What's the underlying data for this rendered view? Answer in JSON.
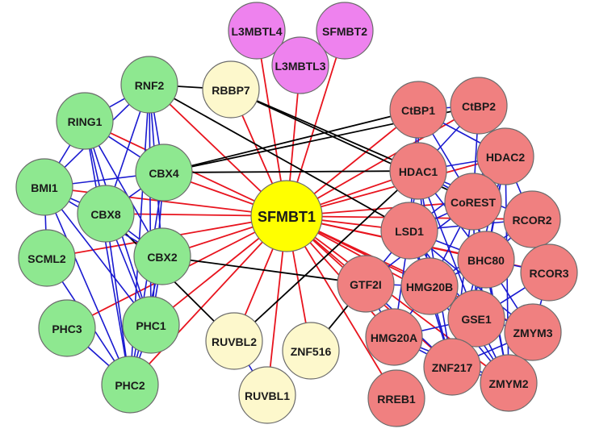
{
  "diagram": {
    "center": "SFMBT1",
    "edge_colors": {
      "red": "#e8141e",
      "blue": "#1a1ad0",
      "black": "#000000"
    },
    "group_colors": {
      "center": "#ffff00",
      "green": "#8ee890",
      "pink": "#f08080",
      "yellow": "#fdf8cc",
      "magenta": "#ee82ee"
    },
    "nodes": [
      {
        "id": "SFMBT1",
        "label": "SFMBT1",
        "group": "center"
      },
      {
        "id": "L3MBTL4",
        "label": "L3MBTL4",
        "group": "magenta"
      },
      {
        "id": "SFMBT2",
        "label": "SFMBT2",
        "group": "magenta"
      },
      {
        "id": "L3MBTL3",
        "label": "L3MBTL3",
        "group": "magenta"
      },
      {
        "id": "RBBP7",
        "label": "RBBP7",
        "group": "yellow"
      },
      {
        "id": "RUVBL2",
        "label": "RUVBL2",
        "group": "yellow"
      },
      {
        "id": "ZNF516",
        "label": "ZNF516",
        "group": "yellow"
      },
      {
        "id": "RUVBL1",
        "label": "RUVBL1",
        "group": "yellow"
      },
      {
        "id": "RNF2",
        "label": "RNF2",
        "group": "green"
      },
      {
        "id": "RING1",
        "label": "RING1",
        "group": "green"
      },
      {
        "id": "BMI1",
        "label": "BMI1",
        "group": "green"
      },
      {
        "id": "CBX4",
        "label": "CBX4",
        "group": "green"
      },
      {
        "id": "CBX8",
        "label": "CBX8",
        "group": "green"
      },
      {
        "id": "SCML2",
        "label": "SCML2",
        "group": "green"
      },
      {
        "id": "CBX2",
        "label": "CBX2",
        "group": "green"
      },
      {
        "id": "PHC3",
        "label": "PHC3",
        "group": "green"
      },
      {
        "id": "PHC1",
        "label": "PHC1",
        "group": "green"
      },
      {
        "id": "PHC2",
        "label": "PHC2",
        "group": "green"
      },
      {
        "id": "CtBP1",
        "label": "CtBP1",
        "group": "pink"
      },
      {
        "id": "CtBP2",
        "label": "CtBP2",
        "group": "pink"
      },
      {
        "id": "HDAC2",
        "label": "HDAC2",
        "group": "pink"
      },
      {
        "id": "HDAC1",
        "label": "HDAC1",
        "group": "pink"
      },
      {
        "id": "CoREST",
        "label": "CoREST",
        "group": "pink"
      },
      {
        "id": "RCOR2",
        "label": "RCOR2",
        "group": "pink"
      },
      {
        "id": "LSD1",
        "label": "LSD1",
        "group": "pink"
      },
      {
        "id": "BHC80",
        "label": "BHC80",
        "group": "pink"
      },
      {
        "id": "RCOR3",
        "label": "RCOR3",
        "group": "pink"
      },
      {
        "id": "GTF2I",
        "label": "GTF2I",
        "group": "pink"
      },
      {
        "id": "HMG20B",
        "label": "HMG20B",
        "group": "pink"
      },
      {
        "id": "GSE1",
        "label": "GSE1",
        "group": "pink"
      },
      {
        "id": "ZMYM3",
        "label": "ZMYM3",
        "group": "pink"
      },
      {
        "id": "HMG20A",
        "label": "HMG20A",
        "group": "pink"
      },
      {
        "id": "ZNF217",
        "label": "ZNF217",
        "group": "pink"
      },
      {
        "id": "ZMYM2",
        "label": "ZMYM2",
        "group": "pink"
      },
      {
        "id": "RREB1",
        "label": "RREB1",
        "group": "pink"
      }
    ],
    "edges": [
      {
        "source": "SFMBT1",
        "target": "L3MBTL4",
        "color": "red"
      },
      {
        "source": "SFMBT1",
        "target": "SFMBT2",
        "color": "red"
      },
      {
        "source": "SFMBT1",
        "target": "L3MBTL3",
        "color": "red"
      },
      {
        "source": "SFMBT1",
        "target": "RBBP7",
        "color": "red"
      },
      {
        "source": "SFMBT1",
        "target": "RNF2",
        "color": "red"
      },
      {
        "source": "SFMBT1",
        "target": "RING1",
        "color": "red"
      },
      {
        "source": "SFMBT1",
        "target": "BMI1",
        "color": "red"
      },
      {
        "source": "SFMBT1",
        "target": "CBX4",
        "color": "red"
      },
      {
        "source": "SFMBT1",
        "target": "CBX8",
        "color": "red"
      },
      {
        "source": "SFMBT1",
        "target": "SCML2",
        "color": "red"
      },
      {
        "source": "SFMBT1",
        "target": "CBX2",
        "color": "red"
      },
      {
        "source": "SFMBT1",
        "target": "PHC3",
        "color": "red"
      },
      {
        "source": "SFMBT1",
        "target": "PHC1",
        "color": "red"
      },
      {
        "source": "SFMBT1",
        "target": "PHC2",
        "color": "red"
      },
      {
        "source": "SFMBT1",
        "target": "RUVBL2",
        "color": "red"
      },
      {
        "source": "SFMBT1",
        "target": "ZNF516",
        "color": "red"
      },
      {
        "source": "SFMBT1",
        "target": "RUVBL1",
        "color": "red"
      },
      {
        "source": "SFMBT1",
        "target": "CtBP1",
        "color": "red"
      },
      {
        "source": "SFMBT1",
        "target": "CtBP2",
        "color": "red"
      },
      {
        "source": "SFMBT1",
        "target": "HDAC2",
        "color": "red"
      },
      {
        "source": "SFMBT1",
        "target": "HDAC1",
        "color": "red"
      },
      {
        "source": "SFMBT1",
        "target": "CoREST",
        "color": "red"
      },
      {
        "source": "SFMBT1",
        "target": "RCOR2",
        "color": "red"
      },
      {
        "source": "SFMBT1",
        "target": "LSD1",
        "color": "red"
      },
      {
        "source": "SFMBT1",
        "target": "BHC80",
        "color": "red"
      },
      {
        "source": "SFMBT1",
        "target": "RCOR3",
        "color": "red"
      },
      {
        "source": "SFMBT1",
        "target": "GTF2I",
        "color": "red"
      },
      {
        "source": "SFMBT1",
        "target": "HMG20B",
        "color": "red"
      },
      {
        "source": "SFMBT1",
        "target": "GSE1",
        "color": "red"
      },
      {
        "source": "SFMBT1",
        "target": "ZMYM3",
        "color": "red"
      },
      {
        "source": "SFMBT1",
        "target": "HMG20A",
        "color": "red"
      },
      {
        "source": "SFMBT1",
        "target": "ZNF217",
        "color": "red"
      },
      {
        "source": "SFMBT1",
        "target": "ZMYM2",
        "color": "red"
      },
      {
        "source": "SFMBT1",
        "target": "RREB1",
        "color": "red"
      },
      {
        "source": "RNF2",
        "target": "RBBP7",
        "color": "black"
      },
      {
        "source": "RNF2",
        "target": "LSD1",
        "color": "black"
      },
      {
        "source": "RBBP7",
        "target": "HDAC1",
        "color": "black"
      },
      {
        "source": "RBBP7",
        "target": "CoREST",
        "color": "black"
      },
      {
        "source": "CBX4",
        "target": "CtBP1",
        "color": "black"
      },
      {
        "source": "CBX4",
        "target": "CtBP2",
        "color": "black"
      },
      {
        "source": "CBX4",
        "target": "HDAC1",
        "color": "black"
      },
      {
        "source": "CBX2",
        "target": "GTF2I",
        "color": "black"
      },
      {
        "source": "CBX8",
        "target": "RUVBL2",
        "color": "black"
      },
      {
        "source": "RUVBL2",
        "target": "HDAC1",
        "color": "black"
      },
      {
        "source": "ZNF516",
        "target": "GTF2I",
        "color": "black"
      },
      {
        "source": "RNF2",
        "target": "RING1",
        "color": "blue"
      },
      {
        "source": "RNF2",
        "target": "BMI1",
        "color": "blue"
      },
      {
        "source": "RNF2",
        "target": "CBX4",
        "color": "blue"
      },
      {
        "source": "RNF2",
        "target": "CBX8",
        "color": "blue"
      },
      {
        "source": "RNF2",
        "target": "CBX2",
        "color": "blue"
      },
      {
        "source": "RNF2",
        "target": "PHC1",
        "color": "blue"
      },
      {
        "source": "RNF2",
        "target": "PHC2",
        "color": "blue"
      },
      {
        "source": "RING1",
        "target": "BMI1",
        "color": "blue"
      },
      {
        "source": "RING1",
        "target": "CBX4",
        "color": "blue"
      },
      {
        "source": "RING1",
        "target": "CBX8",
        "color": "blue"
      },
      {
        "source": "RING1",
        "target": "CBX2",
        "color": "blue"
      },
      {
        "source": "RING1",
        "target": "PHC1",
        "color": "blue"
      },
      {
        "source": "RING1",
        "target": "PHC2",
        "color": "blue"
      },
      {
        "source": "BMI1",
        "target": "CBX4",
        "color": "blue"
      },
      {
        "source": "BMI1",
        "target": "CBX8",
        "color": "blue"
      },
      {
        "source": "BMI1",
        "target": "CBX2",
        "color": "blue"
      },
      {
        "source": "BMI1",
        "target": "PHC1",
        "color": "blue"
      },
      {
        "source": "BMI1",
        "target": "PHC2",
        "color": "blue"
      },
      {
        "source": "BMI1",
        "target": "SCML2",
        "color": "blue"
      },
      {
        "source": "CBX4",
        "target": "CBX8",
        "color": "blue"
      },
      {
        "source": "CBX4",
        "target": "PHC1",
        "color": "blue"
      },
      {
        "source": "CBX4",
        "target": "PHC2",
        "color": "blue"
      },
      {
        "source": "CBX8",
        "target": "CBX2",
        "color": "blue"
      },
      {
        "source": "CBX8",
        "target": "PHC1",
        "color": "blue"
      },
      {
        "source": "CBX8",
        "target": "PHC2",
        "color": "blue"
      },
      {
        "source": "CBX2",
        "target": "PHC1",
        "color": "blue"
      },
      {
        "source": "CBX2",
        "target": "PHC2",
        "color": "blue"
      },
      {
        "source": "SCML2",
        "target": "PHC2",
        "color": "blue"
      },
      {
        "source": "PHC3",
        "target": "PHC2",
        "color": "blue"
      },
      {
        "source": "PHC1",
        "target": "PHC2",
        "color": "blue"
      },
      {
        "source": "RUVBL2",
        "target": "RUVBL1",
        "color": "blue"
      },
      {
        "source": "CtBP1",
        "target": "CtBP2",
        "color": "blue"
      },
      {
        "source": "CtBP1",
        "target": "HDAC1",
        "color": "blue"
      },
      {
        "source": "CtBP1",
        "target": "CoREST",
        "color": "blue"
      },
      {
        "source": "CtBP1",
        "target": "LSD1",
        "color": "blue"
      },
      {
        "source": "CtBP1",
        "target": "HDAC2",
        "color": "blue"
      },
      {
        "source": "CtBP2",
        "target": "HDAC1",
        "color": "blue"
      },
      {
        "source": "CtBP2",
        "target": "HDAC2",
        "color": "blue"
      },
      {
        "source": "CtBP2",
        "target": "CoREST",
        "color": "blue"
      },
      {
        "source": "HDAC2",
        "target": "HDAC1",
        "color": "blue"
      },
      {
        "source": "HDAC2",
        "target": "CoREST",
        "color": "blue"
      },
      {
        "source": "HDAC2",
        "target": "LSD1",
        "color": "blue"
      },
      {
        "source": "HDAC2",
        "target": "BHC80",
        "color": "blue"
      },
      {
        "source": "HDAC2",
        "target": "RCOR2",
        "color": "blue"
      },
      {
        "source": "HDAC2",
        "target": "GSE1",
        "color": "blue"
      },
      {
        "source": "HDAC2",
        "target": "ZNF217",
        "color": "blue"
      },
      {
        "source": "HDAC1",
        "target": "CoREST",
        "color": "blue"
      },
      {
        "source": "HDAC1",
        "target": "LSD1",
        "color": "blue"
      },
      {
        "source": "HDAC1",
        "target": "BHC80",
        "color": "blue"
      },
      {
        "source": "HDAC1",
        "target": "HMG20B",
        "color": "blue"
      },
      {
        "source": "HDAC1",
        "target": "GSE1",
        "color": "blue"
      },
      {
        "source": "HDAC1",
        "target": "RCOR2",
        "color": "blue"
      },
      {
        "source": "HDAC1",
        "target": "ZNF217",
        "color": "blue"
      },
      {
        "source": "CoREST",
        "target": "LSD1",
        "color": "blue"
      },
      {
        "source": "CoREST",
        "target": "BHC80",
        "color": "blue"
      },
      {
        "source": "CoREST",
        "target": "HMG20B",
        "color": "blue"
      },
      {
        "source": "CoREST",
        "target": "GSE1",
        "color": "blue"
      },
      {
        "source": "CoREST",
        "target": "ZMYM2",
        "color": "blue"
      },
      {
        "source": "CoREST",
        "target": "ZNF217",
        "color": "blue"
      },
      {
        "source": "CoREST",
        "target": "GTF2I",
        "color": "blue"
      },
      {
        "source": "RCOR2",
        "target": "LSD1",
        "color": "blue"
      },
      {
        "source": "RCOR2",
        "target": "BHC80",
        "color": "blue"
      },
      {
        "source": "LSD1",
        "target": "BHC80",
        "color": "blue"
      },
      {
        "source": "LSD1",
        "target": "HMG20B",
        "color": "blue"
      },
      {
        "source": "LSD1",
        "target": "GSE1",
        "color": "blue"
      },
      {
        "source": "LSD1",
        "target": "GTF2I",
        "color": "blue"
      },
      {
        "source": "LSD1",
        "target": "HMG20A",
        "color": "blue"
      },
      {
        "source": "LSD1",
        "target": "ZNF217",
        "color": "blue"
      },
      {
        "source": "LSD1",
        "target": "ZMYM2",
        "color": "blue"
      },
      {
        "source": "LSD1",
        "target": "ZMYM3",
        "color": "blue"
      },
      {
        "source": "BHC80",
        "target": "RCOR3",
        "color": "blue"
      },
      {
        "source": "BHC80",
        "target": "HMG20B",
        "color": "blue"
      },
      {
        "source": "BHC80",
        "target": "GSE1",
        "color": "blue"
      },
      {
        "source": "BHC80",
        "target": "ZMYM3",
        "color": "blue"
      },
      {
        "source": "BHC80",
        "target": "ZNF217",
        "color": "blue"
      },
      {
        "source": "BHC80",
        "target": "ZMYM2",
        "color": "blue"
      },
      {
        "source": "RCOR3",
        "target": "GSE1",
        "color": "blue"
      },
      {
        "source": "RCOR3",
        "target": "ZMYM3",
        "color": "blue"
      },
      {
        "source": "GTF2I",
        "target": "HMG20B",
        "color": "blue"
      },
      {
        "source": "GTF2I",
        "target": "HMG20A",
        "color": "blue"
      },
      {
        "source": "GTF2I",
        "target": "ZNF217",
        "color": "blue"
      },
      {
        "source": "HMG20B",
        "target": "GSE1",
        "color": "blue"
      },
      {
        "source": "HMG20B",
        "target": "HMG20A",
        "color": "blue"
      },
      {
        "source": "HMG20B",
        "target": "ZNF217",
        "color": "blue"
      },
      {
        "source": "HMG20B",
        "target": "ZMYM2",
        "color": "blue"
      },
      {
        "source": "HMG20B",
        "target": "ZMYM3",
        "color": "blue"
      },
      {
        "source": "GSE1",
        "target": "ZMYM3",
        "color": "blue"
      },
      {
        "source": "GSE1",
        "target": "ZNF217",
        "color": "blue"
      },
      {
        "source": "GSE1",
        "target": "ZMYM2",
        "color": "blue"
      },
      {
        "source": "GSE1",
        "target": "HMG20A",
        "color": "blue"
      },
      {
        "source": "ZMYM3",
        "target": "ZMYM2",
        "color": "blue"
      },
      {
        "source": "ZMYM3",
        "target": "ZNF217",
        "color": "blue"
      },
      {
        "source": "HMG20A",
        "target": "ZNF217",
        "color": "blue"
      },
      {
        "source": "HMG20A",
        "target": "ZMYM2",
        "color": "blue"
      },
      {
        "source": "ZNF217",
        "target": "ZMYM2",
        "color": "blue"
      },
      {
        "source": "HDAC2",
        "target": "ZMYM2",
        "color": "blue"
      },
      {
        "source": "RCOR2",
        "target": "HMG20B",
        "color": "blue"
      }
    ]
  }
}
